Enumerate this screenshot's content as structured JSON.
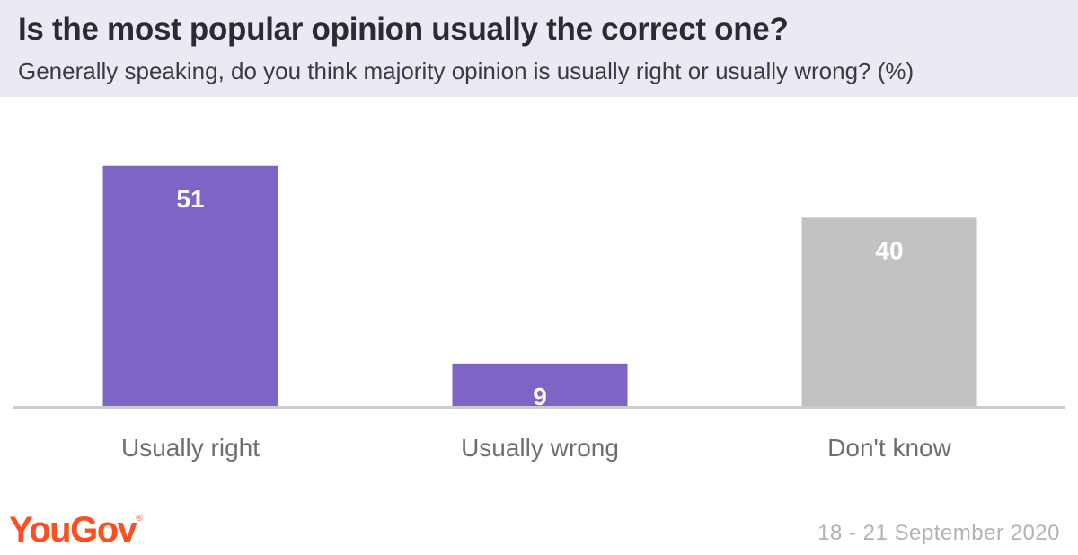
{
  "header": {
    "title": "Is the most popular opinion usually the correct one?",
    "subtitle": "Generally speaking, do you think majority opinion is usually right or usually wrong? (%)"
  },
  "chart_data": {
    "type": "bar",
    "categories": [
      "Usually right",
      "Usually wrong",
      "Don't know"
    ],
    "values": [
      51,
      9,
      40
    ],
    "title": "Is the most popular opinion usually the correct one?",
    "subtitle": "Generally speaking, do you think majority opinion is usually right or usually wrong? (%)",
    "xlabel": "",
    "ylabel": "",
    "ylim": [
      0,
      60
    ],
    "grid": false,
    "legend": "none",
    "colors": [
      "#7e64c4",
      "#7e64c4",
      "#c2c2c2"
    ],
    "baseline_color": "#cccccc",
    "category_label_color": "#6e6e6e",
    "value_label_color": "#ffffff"
  },
  "footer": {
    "logo": "YouGov",
    "logo_mark": "®",
    "date": "18 - 21 September 2020"
  },
  "colors": {
    "accent": "#7e64c4",
    "neutral": "#c2c2c2",
    "header_bg": "#ece9f5",
    "logo": "#ff4e1f"
  }
}
